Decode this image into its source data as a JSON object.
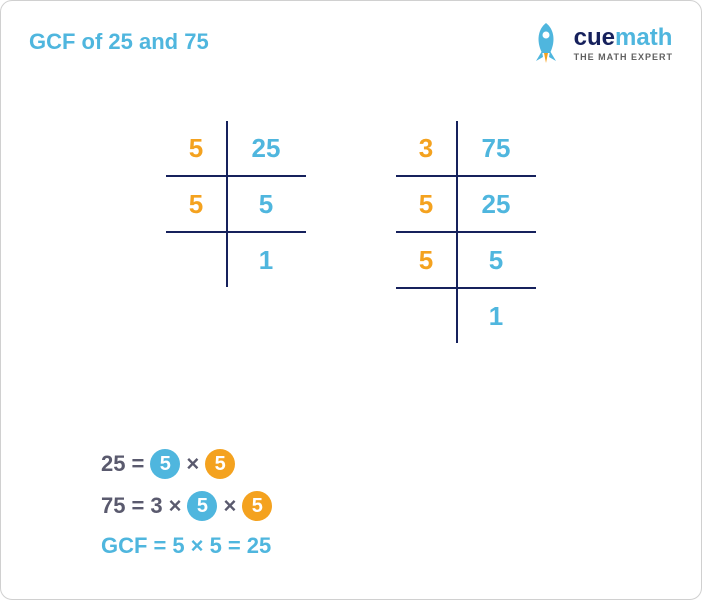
{
  "colors": {
    "blue": "#4fb6de",
    "orange": "#f4a21f",
    "navy": "#16215c",
    "gray": "#5a5a6e",
    "line": "#16215c"
  },
  "title": {
    "text": "GCF of 25 and 75",
    "color": "#4fb6de",
    "fontsize": 22
  },
  "logo": {
    "word1": "cue",
    "word1_color": "#16215c",
    "word2": "math",
    "word2_color": "#4fb6de",
    "tagline": "THE MATH EXPERT",
    "rocket_body": "#4fb6de",
    "rocket_flame": "#f4a21f"
  },
  "table_left": {
    "rows": [
      {
        "divisor": "5",
        "divisor_color": "#f4a21f",
        "value": "25",
        "value_color": "#4fb6de"
      },
      {
        "divisor": "5",
        "divisor_color": "#f4a21f",
        "value": "5",
        "value_color": "#4fb6de"
      },
      {
        "divisor": "",
        "divisor_color": "#f4a21f",
        "value": "1",
        "value_color": "#4fb6de"
      }
    ]
  },
  "table_right": {
    "rows": [
      {
        "divisor": "3",
        "divisor_color": "#f4a21f",
        "value": "75",
        "value_color": "#4fb6de"
      },
      {
        "divisor": "5",
        "divisor_color": "#f4a21f",
        "value": "25",
        "value_color": "#4fb6de"
      },
      {
        "divisor": "5",
        "divisor_color": "#f4a21f",
        "value": "5",
        "value_color": "#4fb6de"
      },
      {
        "divisor": "",
        "divisor_color": "#f4a21f",
        "value": "1",
        "value_color": "#4fb6de"
      }
    ]
  },
  "eq1": {
    "lhs": "25",
    "eq": "=",
    "f1": "5",
    "f1_bg": "#4fb6de",
    "op": "×",
    "f2": "5",
    "f2_bg": "#f4a21f"
  },
  "eq2": {
    "lhs": "75",
    "eq": "=",
    "f0": "3",
    "op1": "×",
    "f1": "5",
    "f1_bg": "#4fb6de",
    "op2": "×",
    "f2": "5",
    "f2_bg": "#f4a21f"
  },
  "gcf": {
    "label": "GCF",
    "eq1": "=",
    "expr": "5 × 5",
    "eq2": "=",
    "result": "25",
    "color": "#4fb6de"
  }
}
